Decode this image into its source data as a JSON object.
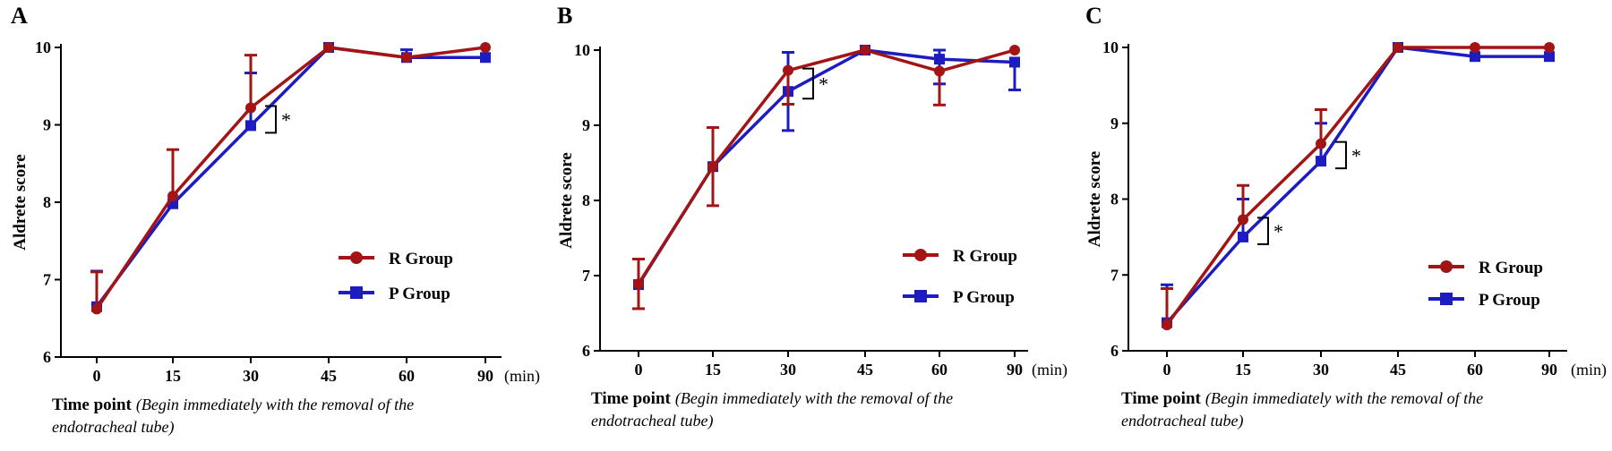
{
  "chart_data": [
    {
      "type": "line",
      "panel_label": "A",
      "x": [
        0,
        15,
        30,
        45,
        60,
        90
      ],
      "x_tick_labels": [
        "0",
        "15",
        "30",
        "45",
        "60",
        "90"
      ],
      "x_unit": "(min)",
      "xlabel_bold": "Time point",
      "xlabel_italic_line1": "(Begin immediately with the removal of the",
      "xlabel_italic_line2": "endotracheal tube)",
      "ylabel": "Aldrete score",
      "ylim": [
        6,
        10
      ],
      "y_ticks": [
        "6",
        "7",
        "8",
        "9",
        "10"
      ],
      "series": [
        {
          "name": "R Group",
          "color": "#a31515",
          "marker": "circle",
          "values": [
            6.62,
            8.08,
            9.22,
            10.0,
            9.87,
            10.0
          ],
          "err_up": [
            0.48,
            0.6,
            0.68,
            0,
            0,
            0
          ],
          "err_down": [
            0,
            0,
            0,
            0,
            0,
            0
          ]
        },
        {
          "name": "P Group",
          "color": "#1c1cc2",
          "marker": "square",
          "values": [
            6.65,
            7.98,
            8.99,
            10.0,
            9.87,
            9.87
          ],
          "err_up": [
            0.46,
            0,
            0.68,
            0,
            0.1,
            0
          ],
          "err_down": [
            0,
            0,
            0,
            0,
            0,
            0
          ]
        }
      ],
      "annotations": [
        {
          "text": "*",
          "x": 30
        }
      ],
      "legend_position": "center-right"
    },
    {
      "type": "line",
      "panel_label": "B",
      "x": [
        0,
        15,
        30,
        45,
        60,
        90
      ],
      "x_tick_labels": [
        "0",
        "15",
        "30",
        "45",
        "60",
        "90"
      ],
      "x_unit": "(min)",
      "xlabel_bold": "Time point",
      "xlabel_italic_line1": "(Begin immediately with the removal of the",
      "xlabel_italic_line2": "endotracheal tube)",
      "ylabel": "Aldrete score",
      "ylim": [
        6,
        10
      ],
      "y_ticks": [
        "6",
        "7",
        "8",
        "9",
        "10"
      ],
      "series": [
        {
          "name": "R Group",
          "color": "#a31515",
          "marker": "circle",
          "values": [
            6.89,
            8.45,
            9.73,
            10.0,
            9.72,
            10.0
          ],
          "err_up": [
            0.33,
            0.52,
            0,
            0,
            0,
            0
          ],
          "err_down": [
            0.33,
            0.52,
            0.45,
            0,
            0.45,
            0
          ]
        },
        {
          "name": "P Group",
          "color": "#1c1cc2",
          "marker": "square",
          "values": [
            6.88,
            8.45,
            9.45,
            10.0,
            9.88,
            9.84
          ],
          "err_up": [
            0,
            0,
            0.52,
            0,
            0.12,
            0
          ],
          "err_down": [
            0,
            0,
            0.52,
            0,
            0.33,
            0.37
          ]
        }
      ],
      "annotations": [
        {
          "text": "*",
          "x": 30
        }
      ],
      "legend_position": "center-right"
    },
    {
      "type": "line",
      "panel_label": "C",
      "x": [
        0,
        15,
        30,
        45,
        60,
        90
      ],
      "x_tick_labels": [
        "0",
        "15",
        "30",
        "45",
        "60",
        "90"
      ],
      "x_unit": "(min)",
      "xlabel_bold": "Time point",
      "xlabel_italic_line1": "(Begin immediately with the removal of the",
      "xlabel_italic_line2": "endotracheal tube)",
      "ylabel": "Aldrete score",
      "ylim": [
        6,
        10
      ],
      "y_ticks": [
        "6",
        "7",
        "8",
        "9",
        "10"
      ],
      "series": [
        {
          "name": "R Group",
          "color": "#a31515",
          "marker": "circle",
          "values": [
            6.34,
            7.73,
            8.73,
            10.0,
            10.0,
            10.0
          ],
          "err_up": [
            0.48,
            0.45,
            0.45,
            0,
            0,
            0
          ],
          "err_down": [
            0,
            0,
            0,
            0,
            0,
            0
          ]
        },
        {
          "name": "P Group",
          "color": "#1c1cc2",
          "marker": "square",
          "values": [
            6.37,
            7.5,
            8.5,
            10.0,
            9.88,
            9.88
          ],
          "err_up": [
            0.5,
            0.5,
            0.5,
            0,
            0,
            0
          ],
          "err_down": [
            0,
            0,
            0,
            0,
            0,
            0
          ]
        }
      ],
      "annotations": [
        {
          "text": "*",
          "x": 15
        },
        {
          "text": "*",
          "x": 30
        }
      ],
      "legend_position": "center-right"
    }
  ]
}
